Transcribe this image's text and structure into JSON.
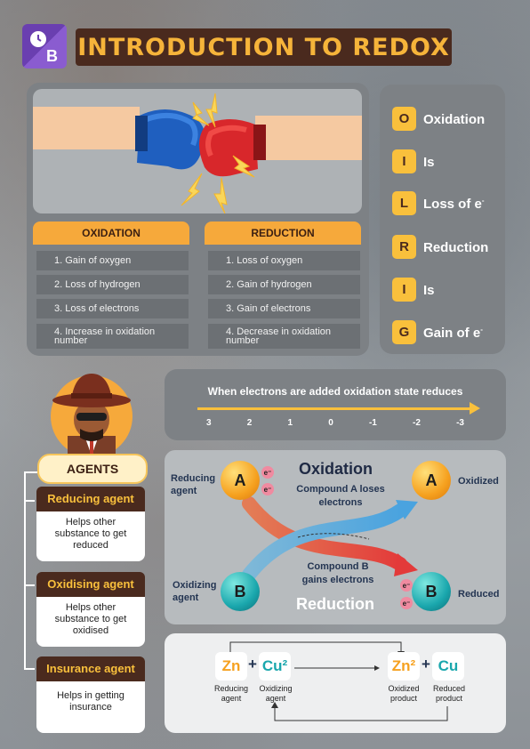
{
  "header": {
    "title": "INTRODUCTION TO REDOX",
    "logo_icon": "byjus-logo"
  },
  "columns": {
    "oxidation": {
      "title": "OXIDATION",
      "items": [
        "1.  Gain of oxygen",
        "2.  Loss of hydrogen",
        "3.  Loss of electrons",
        "4.  Increase in oxidation number"
      ]
    },
    "reduction": {
      "title": "REDUCTION",
      "items": [
        "1. Loss of oxygen",
        "2.  Gain of hydrogen",
        "3.  Gain of electrons",
        "4.  Decrease in oxidation number"
      ]
    }
  },
  "oil_rig": [
    {
      "letter": "O",
      "word": "Oxidation"
    },
    {
      "letter": "I",
      "word": "Is"
    },
    {
      "letter": "L",
      "word": "Loss of e"
    },
    {
      "letter": "R",
      "word": "Reduction"
    },
    {
      "letter": "I",
      "word": "Is"
    },
    {
      "letter": "G",
      "word": "Gain of e"
    }
  ],
  "scale": {
    "caption": "When electrons are added oxidation state reduces",
    "ticks": [
      "3",
      "2",
      "1",
      "0",
      "-1",
      "-2",
      "-3"
    ]
  },
  "agents": {
    "title": "AGENTS",
    "items": [
      {
        "name": "Reducing agent",
        "desc": "Helps other substance to get reduced"
      },
      {
        "name": "Oxidising agent",
        "desc": "Helps other substance to get oxidised"
      },
      {
        "name": "Insurance agent",
        "desc": "Helps in getting insurance"
      }
    ]
  },
  "redox": {
    "oxidation": "Oxidation",
    "reduction": "Reduction",
    "compoundA": "Compound A loses electrons",
    "compoundB": "Compound B gains electrons",
    "reducing_agent": "Reducing agent",
    "oxidizing_agent": "Oxidizing agent",
    "oxidized": "Oxidized",
    "reduced": "Reduced",
    "A": "A",
    "B": "B",
    "e": "e⁻"
  },
  "equation": {
    "zn": "Zn",
    "cu2": "Cu²",
    "zn2": "Zn²",
    "cu": "Cu",
    "plus": "+",
    "reducing_agent": "Reducing agent",
    "oxidizing_agent": "Oxidizing agent",
    "oxidized_product": "Oxidized product",
    "reduced_product": "Reduced product"
  },
  "colors": {
    "accent": "#f6a93b",
    "brown": "#4a2a1e",
    "yellow": "#f9c03c",
    "teal": "#1aa7ad",
    "orange": "#f6a11f"
  }
}
